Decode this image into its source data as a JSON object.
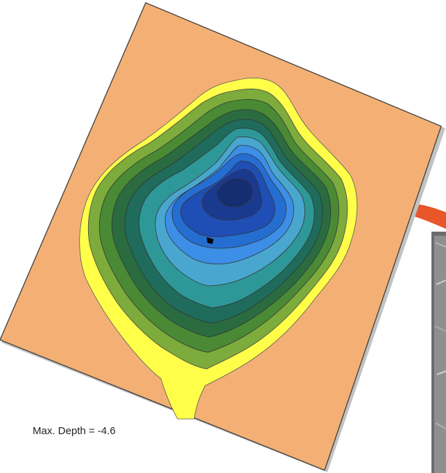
{
  "map": {
    "max_depth_label": "Max. Depth = -4.6",
    "max_depth_value": -4.6,
    "colors": {
      "background": "#f4b074",
      "contour_bands": [
        "#ffff4a",
        "#7dab3c",
        "#4a8a35",
        "#2a6c3f",
        "#1f6b5c",
        "#2e9898",
        "#49a7cf",
        "#3c8ee6",
        "#256ed1",
        "#1f4eb5",
        "#1a3a8f",
        "#152d71"
      ],
      "arrow": "#e8562a",
      "photo_frame": "#6c6c6c"
    }
  }
}
